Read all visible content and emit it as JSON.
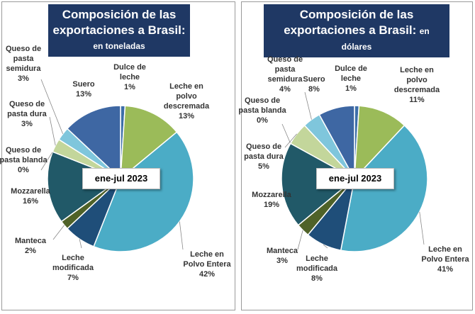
{
  "chart_data": [
    {
      "type": "pie",
      "title": "Composición de las exportaciones a Brasil:",
      "subtitle": "en toneladas",
      "annotation": "ene-jul 2023",
      "categories": [
        "Dulce de leche",
        "Leche en polvo descremada",
        "Leche en Polvo Entera",
        "Leche modificada",
        "Manteca",
        "Mozzarella",
        "Queso de pasta blanda",
        "Queso de pasta dura",
        "Queso de pasta semidura",
        "Suero"
      ],
      "values": [
        1,
        13,
        42,
        7,
        2,
        16,
        0,
        3,
        3,
        13
      ],
      "value_labels": [
        "1%",
        "13%",
        "42%",
        "7%",
        "2%",
        "16%",
        "0%",
        "3%",
        "3%",
        "13%"
      ],
      "colors": [
        "#3d6ea8",
        "#9bbb59",
        "#4bacc6",
        "#1f4e79",
        "#4f6228",
        "#215968",
        "#d7e4bd",
        "#c3d69b",
        "#7fc6dc",
        "#3e67a3"
      ]
    },
    {
      "type": "pie",
      "title": "Composición de las exportaciones a Brasil:",
      "subtitle": "en dólares",
      "annotation": "ene-jul 2023",
      "categories": [
        "Dulce de leche",
        "Leche en polvo descremada",
        "Leche en Polvo Entera",
        "Leche modificada",
        "Manteca",
        "Mozzarella",
        "Queso de pasta blanda",
        "Queso de pasta dura",
        "Queso de pasta semidura",
        "Suero"
      ],
      "values": [
        1,
        11,
        41,
        8,
        3,
        19,
        0,
        5,
        4,
        8
      ],
      "value_labels": [
        "1%",
        "11%",
        "41%",
        "8%",
        "3%",
        "19%",
        "0%",
        "5%",
        "4%",
        "8%"
      ],
      "colors": [
        "#3d6ea8",
        "#9bbb59",
        "#4bacc6",
        "#1f4e79",
        "#4f6228",
        "#215968",
        "#d7e4bd",
        "#c3d69b",
        "#7fc6dc",
        "#3e67a3"
      ]
    }
  ]
}
